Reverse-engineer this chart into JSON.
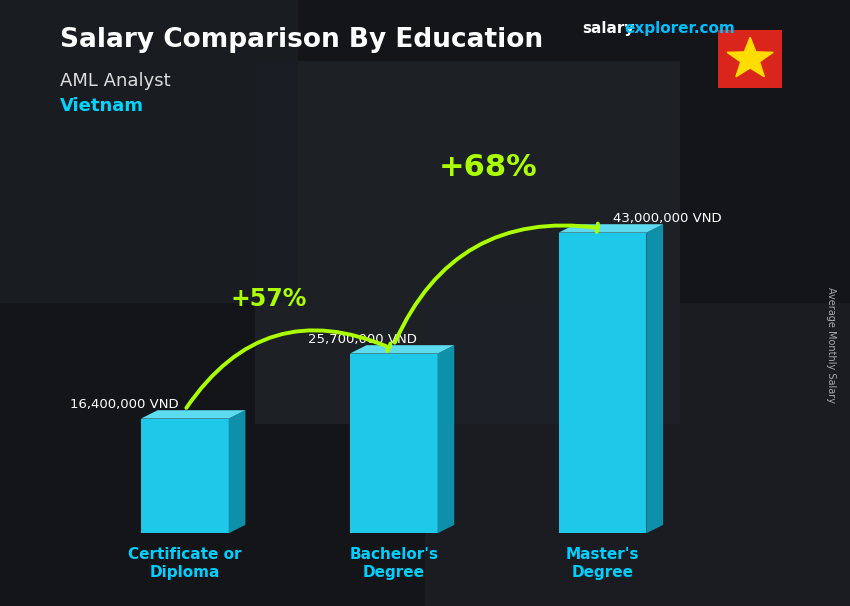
{
  "title": "Salary Comparison By Education",
  "subtitle_job": "AML Analyst",
  "subtitle_country": "Vietnam",
  "branding_salary": "salary",
  "branding_explorer": "explorer.com",
  "ylabel": "Average Monthly Salary",
  "categories": [
    "Certificate or\nDiploma",
    "Bachelor's\nDegree",
    "Master's\nDegree"
  ],
  "values": [
    16400000,
    25700000,
    43000000
  ],
  "value_labels": [
    "16,400,000 VND",
    "25,700,000 VND",
    "43,000,000 VND"
  ],
  "pct_labels": [
    "+57%",
    "+68%"
  ],
  "bar_color_front": "#1ec8e8",
  "bar_color_side": "#0e8faa",
  "bar_color_top": "#5ddcf0",
  "bg_color": "#1a1a1a",
  "title_color": "#ffffff",
  "subtitle_job_color": "#dddddd",
  "subtitle_country_color": "#00d4ff",
  "value_label_color": "#ffffff",
  "pct_color": "#aaff00",
  "arrow_color": "#aaff00",
  "xlabel_color": "#00cfff",
  "branding_salary_color": "#ffffff",
  "branding_explorer_color": "#00bfff",
  "ylim": [
    0,
    52000000
  ],
  "bar_width": 0.42,
  "bar_positions": [
    0.5,
    1.5,
    2.5
  ],
  "xlim": [
    -0.1,
    3.4
  ],
  "depth_x": 0.08,
  "depth_y": 1200000
}
